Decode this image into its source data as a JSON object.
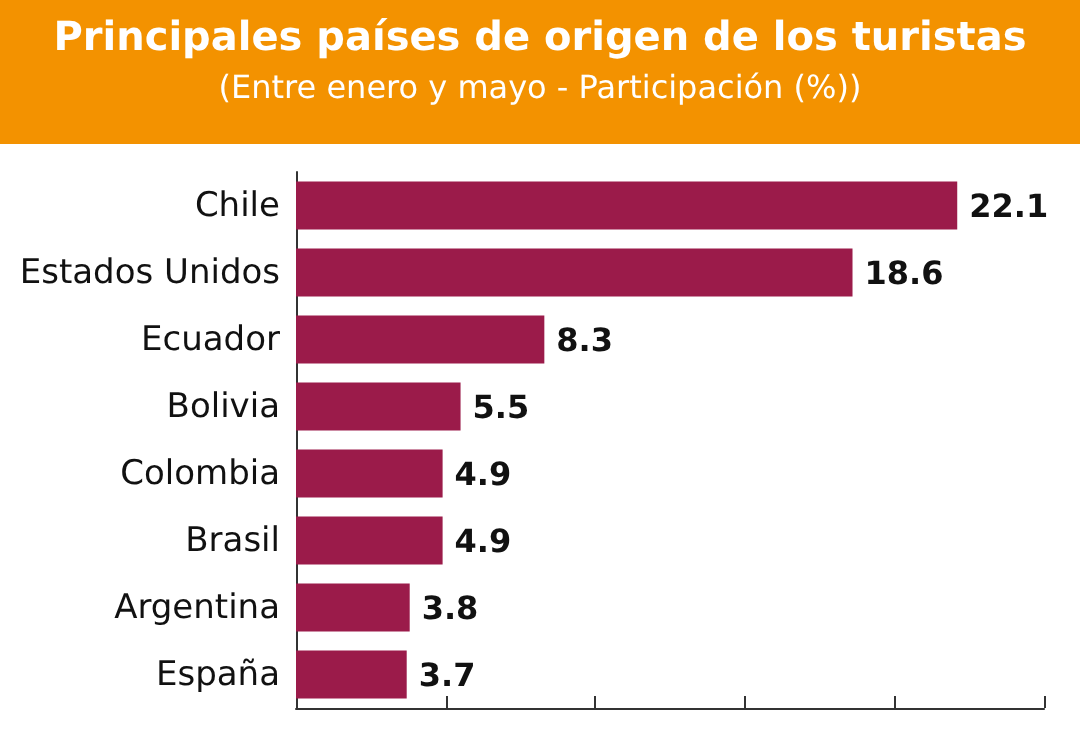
{
  "chart_data": {
    "type": "bar",
    "orientation": "horizontal",
    "title": "Principales países de origen de los turistas",
    "subtitle": "(Entre enero y mayo - Participación (%))",
    "categories": [
      "Chile",
      "Estados Unidos",
      "Ecuador",
      "Bolivia",
      "Colombia",
      "Brasil",
      "Argentina",
      "España"
    ],
    "values": [
      22.1,
      18.6,
      8.3,
      5.5,
      4.9,
      4.9,
      3.8,
      3.7
    ],
    "color": "#9b1b4a",
    "xlim": [
      0,
      25
    ],
    "xticks": [
      {
        "value": 0,
        "label": null
      },
      {
        "value": 5,
        "label": null
      },
      {
        "value": 10,
        "label": null
      },
      {
        "value": 15,
        "label": null
      },
      {
        "value": 20,
        "label": null
      },
      {
        "value": 25,
        "label": null
      }
    ],
    "tick_labels": "y",
    "data_labels": true,
    "grid": false
  }
}
